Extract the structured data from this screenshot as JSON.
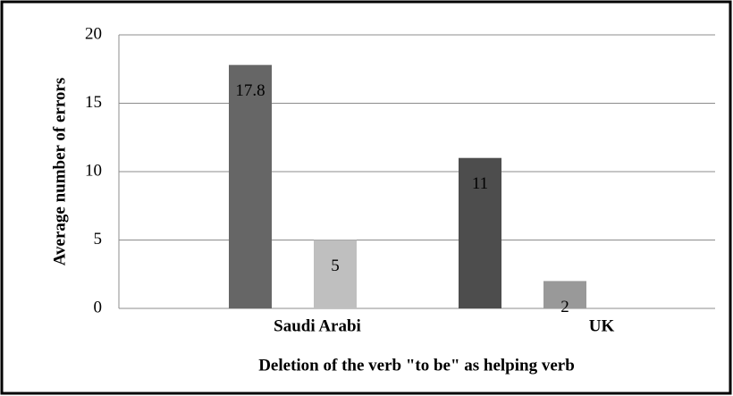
{
  "chart_data": {
    "type": "bar",
    "xlabel": "Deletion of the verb \"to be\" as helping verb",
    "ylabel": "Average number of errors",
    "categories": [
      "Saudi Arabi",
      "UK"
    ],
    "series": [
      {
        "colors": [
          "#666666",
          "#4d4d4d"
        ],
        "values": [
          17.8,
          11
        ]
      },
      {
        "colors": [
          "#bfbfbf",
          "#999999"
        ],
        "values": [
          5,
          2
        ]
      }
    ],
    "ylim": [
      0,
      20
    ],
    "yticks": [
      0,
      5,
      10,
      15,
      20
    ],
    "grid": true
  }
}
